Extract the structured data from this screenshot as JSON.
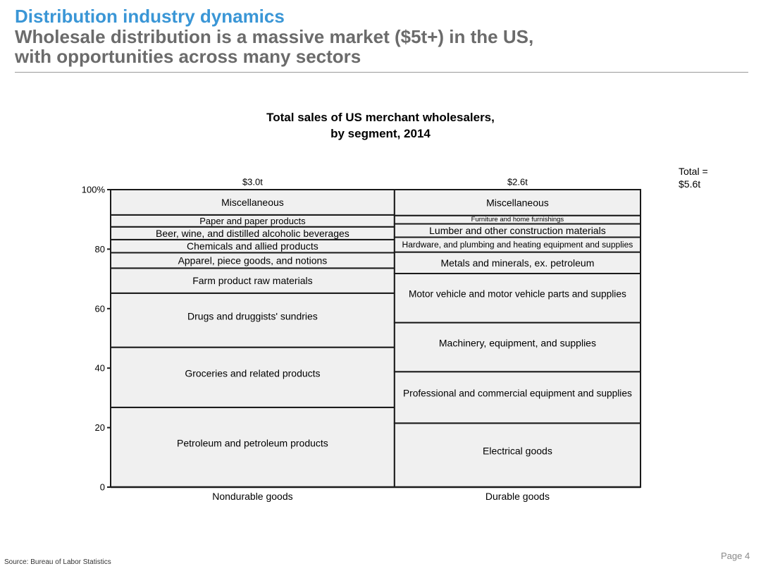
{
  "header": {
    "title": "Distribution industry dynamics",
    "subtitle_line1": "Wholesale distribution is a massive market ($5t+) in the US,",
    "subtitle_line2": "with opportunities across many sectors"
  },
  "total_label_line1": "Total =",
  "total_label_line2": "$5.6t",
  "footer": {
    "source": "Source: Bureau of Labor Statistics",
    "page": "Page 4"
  },
  "chart_data": {
    "type": "bar",
    "variant": "marimekko (100% stacked, variable width)",
    "title_line1": "Total sales of US merchant wholesalers,",
    "title_line2": "by segment, 2014",
    "y_ticks": [
      "0",
      "20",
      "40",
      "60",
      "80",
      "100%"
    ],
    "ylim": [
      0,
      100
    ],
    "grid": false,
    "columns": [
      {
        "name": "Nondurable goods",
        "total_label": "$3.0t",
        "total": 3.0,
        "segments": [
          {
            "label": "Petroleum and petroleum products",
            "start": 0,
            "end": 26.8
          },
          {
            "label": "Groceries and related products",
            "start": 26.8,
            "end": 47.0
          },
          {
            "label": "Drugs and druggists' sundries",
            "start": 47.0,
            "end": 65.2
          },
          {
            "label": "Farm product raw materials",
            "start": 65.2,
            "end": 73.6
          },
          {
            "label": "Apparel, piece goods, and notions",
            "start": 73.6,
            "end": 78.8
          },
          {
            "label": "Chemicals and allied products",
            "start": 78.8,
            "end": 83.2
          },
          {
            "label": "Beer, wine, and distilled alcoholic beverages",
            "start": 83.2,
            "end": 87.5
          },
          {
            "label": "Paper and paper products",
            "start": 87.5,
            "end": 91.5
          },
          {
            "label": "Miscellaneous",
            "start": 91.5,
            "end": 100
          }
        ]
      },
      {
        "name": "Durable goods",
        "total_label": "$2.6t",
        "total": 2.6,
        "segments": [
          {
            "label": "Electrical goods",
            "start": 0,
            "end": 21.5
          },
          {
            "label": "Professional and commercial equipment and supplies",
            "start": 21.5,
            "end": 38.8
          },
          {
            "label": "Machinery, equipment, and supplies",
            "start": 38.8,
            "end": 55.3
          },
          {
            "label": "Motor vehicle and motor vehicle parts and supplies",
            "start": 55.3,
            "end": 71.8
          },
          {
            "label": "Metals and minerals, ex. petroleum",
            "start": 71.8,
            "end": 79.0
          },
          {
            "label": "Hardware, and plumbing and heating equipment and supplies",
            "start": 79.0,
            "end": 84.0
          },
          {
            "label": "Lumber and other construction materials",
            "start": 84.0,
            "end": 88.5
          },
          {
            "label": "Furniture and home furnishings",
            "start": 88.5,
            "end": 91.3
          },
          {
            "label": "Miscellaneous",
            "start": 91.3,
            "end": 100
          }
        ]
      }
    ],
    "colors": {
      "fill": "#f0f0f0",
      "stroke": "#1a1a1a"
    }
  }
}
